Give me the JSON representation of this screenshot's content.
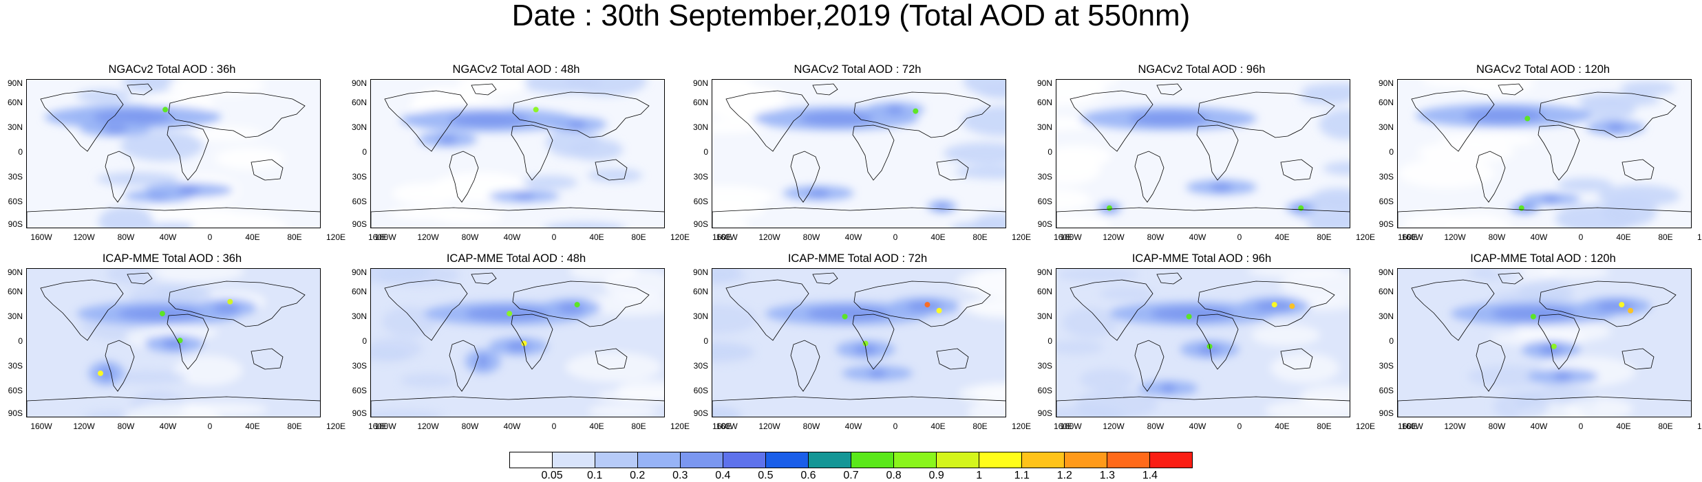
{
  "title": "Date : 30th September,2019 (Total AOD at 550nm)",
  "lat_labels": [
    "90N",
    "60N",
    "30N",
    "0",
    "30S",
    "60S",
    "90S"
  ],
  "lon_labels": [
    "160W",
    "120W",
    "80W",
    "40W",
    "0",
    "40E",
    "80E",
    "120E",
    "160E"
  ],
  "panels": [
    {
      "title": "NGACv2 Total AOD : 36h",
      "model": "NGACv2",
      "forecast_hour": 36
    },
    {
      "title": "NGACv2 Total AOD : 48h",
      "model": "NGACv2",
      "forecast_hour": 48
    },
    {
      "title": "NGACv2 Total AOD : 72h",
      "model": "NGACv2",
      "forecast_hour": 72
    },
    {
      "title": "NGACv2 Total AOD : 96h",
      "model": "NGACv2",
      "forecast_hour": 96
    },
    {
      "title": "NGACv2 Total AOD : 120h",
      "model": "NGACv2",
      "forecast_hour": 120
    },
    {
      "title": "ICAP-MME Total AOD : 36h",
      "model": "ICAP-MME",
      "forecast_hour": 36
    },
    {
      "title": "ICAP-MME Total AOD : 48h",
      "model": "ICAP-MME",
      "forecast_hour": 48
    },
    {
      "title": "ICAP-MME Total AOD : 72h",
      "model": "ICAP-MME",
      "forecast_hour": 72
    },
    {
      "title": "ICAP-MME Total AOD : 96h",
      "model": "ICAP-MME",
      "forecast_hour": 96
    },
    {
      "title": "ICAP-MME Total AOD : 120h",
      "model": "ICAP-MME",
      "forecast_hour": 120
    }
  ],
  "colorbar": {
    "labels": [
      "0.05",
      "0.1",
      "0.2",
      "0.3",
      "0.4",
      "0.5",
      "0.6",
      "0.7",
      "0.8",
      "0.9",
      "1",
      "1.1",
      "1.2",
      "1.3",
      "1.4"
    ],
    "colors": [
      "#ffffff",
      "#d9e4fb",
      "#b7cbf8",
      "#97b3f6",
      "#7b97f0",
      "#5e72ec",
      "#1a5ee9",
      "#149696",
      "#5ae81a",
      "#8af51c",
      "#d4f51c",
      "#fffd1a",
      "#ffc31a",
      "#ff9a1a",
      "#ff6a1a",
      "#fa1e14"
    ]
  }
}
